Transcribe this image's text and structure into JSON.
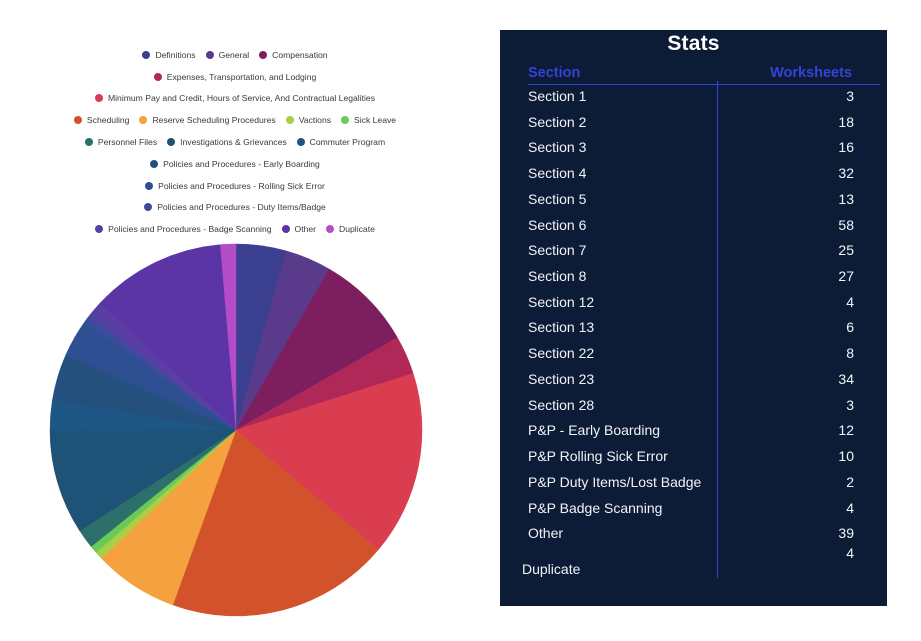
{
  "chart_data": [
    {
      "type": "pie",
      "title": "",
      "legend_position": "top",
      "categories": [
        "Definitions",
        "General",
        "Compensation",
        "Expenses, Transportation, and Lodging",
        "Minimum Pay and Credit, Hours of Service, And Contractual Legalities",
        "Scheduling",
        "Reserve Scheduling Procedures",
        "Vactions",
        "Sick Leave",
        "Personnel Files",
        "Investigations & Grievances",
        "Commuter Program",
        "Policies and Procedures - Early Boarding",
        "Policies and Procedures - Rolling Sick Error",
        "Policies and Procedures - Duty Items/Badge",
        "Policies and Procedures - Badge Scanning",
        "Other",
        "Duplicate"
      ],
      "values": [
        13,
        12,
        25,
        10,
        48,
        58,
        22,
        2,
        2,
        5,
        27,
        8,
        12,
        10,
        2,
        4,
        35,
        4
      ],
      "colors": [
        "#3b3f8f",
        "#5a3a8a",
        "#7d1f5e",
        "#b02857",
        "#db3d50",
        "#d2522b",
        "#f6a140",
        "#a9cf45",
        "#6bc95a",
        "#2d6f6a",
        "#1e5276",
        "#1d5584",
        "#23507d",
        "#2f4f93",
        "#3d4a9e",
        "#5a3fa2",
        "#5b35a6",
        "#b44bc7"
      ],
      "legend_rows": [
        [
          0,
          1,
          2
        ],
        [
          3
        ],
        [
          4
        ],
        [
          5,
          6,
          7,
          8
        ],
        [
          9,
          10,
          11
        ],
        [
          12
        ],
        [
          13
        ],
        [
          14
        ],
        [
          15,
          16,
          17
        ]
      ]
    },
    {
      "type": "table",
      "title": "Stats",
      "columns": [
        "Section",
        "Worksheets"
      ],
      "rows": [
        {
          "section": "Section 1",
          "worksheets": "3"
        },
        {
          "section": "Section 2",
          "worksheets": "18"
        },
        {
          "section": "Section 3",
          "worksheets": "16"
        },
        {
          "section": "Section 4",
          "worksheets": "32"
        },
        {
          "section": "Section 5",
          "worksheets": "13"
        },
        {
          "section": "Section 6",
          "worksheets": "58"
        },
        {
          "section": "Section 7",
          "worksheets": "25"
        },
        {
          "section": "Section 8",
          "worksheets": "27"
        },
        {
          "section": "Section 12",
          "worksheets": "4"
        },
        {
          "section": "Section 13",
          "worksheets": "6"
        },
        {
          "section": "Section 22",
          "worksheets": "8"
        },
        {
          "section": "Section 23",
          "worksheets": "34"
        },
        {
          "section": "Section 28",
          "worksheets": "3"
        },
        {
          "section": "P&P - Early Boarding",
          "worksheets": "12"
        },
        {
          "section": "P&P Rolling Sick Error",
          "worksheets": "10"
        },
        {
          "section": "P&P Duty Items/Lost Badge",
          "worksheets": "2"
        },
        {
          "section": "P&P Badge Scanning",
          "worksheets": "4"
        },
        {
          "section": "Other",
          "worksheets": "39"
        },
        {
          "section": "Duplicate",
          "worksheets": "4"
        }
      ],
      "panel_color": "#0c1b36",
      "header_color": "#3344d6"
    }
  ]
}
